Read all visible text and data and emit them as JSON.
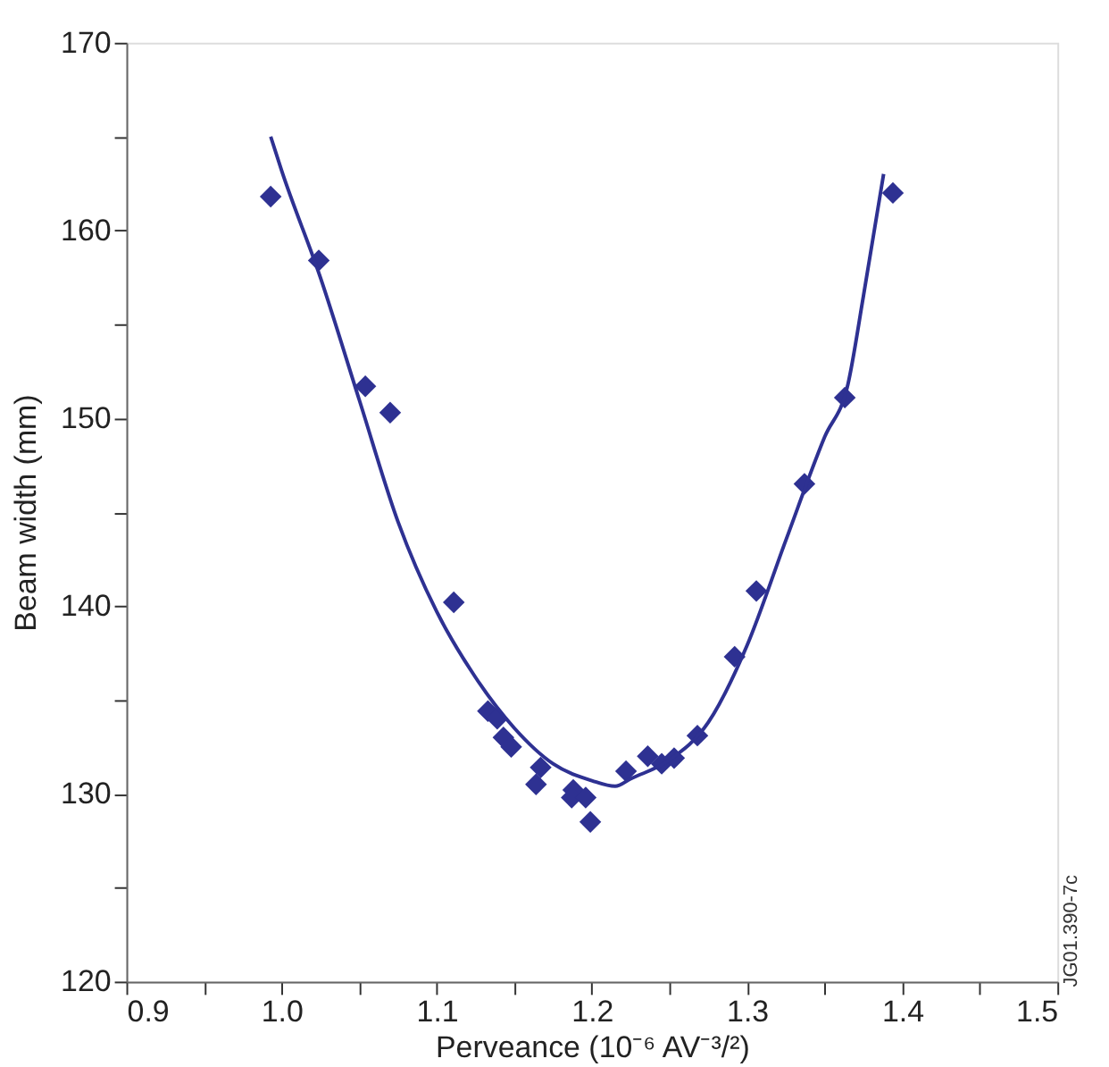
{
  "chart_data": {
    "type": "scatter",
    "xlabel": "Perveance (10⁻⁶ AV⁻³/²)",
    "ylabel": "Beam width (mm)",
    "xlim": [
      0.9,
      1.5
    ],
    "ylim": [
      120,
      170
    ],
    "xticks": [
      0.9,
      {
        "value": 0.95,
        "label": null
      },
      {
        "value": 1,
        "label": "1.0"
      },
      {
        "value": 1.05,
        "label": null
      },
      1.1,
      {
        "value": 1.15,
        "label": null
      },
      1.2,
      {
        "value": 1.25,
        "label": null
      },
      1.3,
      {
        "value": 1.35,
        "label": null
      },
      1.4,
      {
        "value": 1.45,
        "label": null
      },
      1.5
    ],
    "yticks": [
      120,
      {
        "value": 125,
        "label": null
      },
      130,
      {
        "value": 135,
        "label": null
      },
      140,
      {
        "value": 145,
        "label": null
      },
      150,
      {
        "value": 155,
        "label": null
      },
      160,
      {
        "value": 165,
        "label": null
      },
      170
    ],
    "grid": false,
    "marker": "diamond",
    "annotations": [
      "JG01.390-7c"
    ],
    "series": [
      {
        "color": "#2e3192",
        "x": [
          0.993,
          1.024,
          1.054,
          1.07,
          1.111,
          1.133,
          1.139,
          1.143,
          1.148,
          1.167,
          1.164,
          1.188,
          1.187,
          1.196,
          1.199,
          1.222,
          1.236,
          1.245,
          1.253,
          1.268,
          1.292,
          1.306,
          1.337,
          1.363,
          1.394
        ],
        "values": [
          161.8,
          158.4,
          151.7,
          150.3,
          140.2,
          134.4,
          134.0,
          133.0,
          132.5,
          131.4,
          130.5,
          130.2,
          129.8,
          129.8,
          128.5,
          131.2,
          132.0,
          131.6,
          131.9,
          133.1,
          137.3,
          140.8,
          146.5,
          151.1,
          162.0
        ]
      },
      {
        "type": "line",
        "color": "#2e3192",
        "marker": "none",
        "line_style": "solid",
        "x": [
          0.993,
          1.0,
          1.025,
          1.05,
          1.075,
          1.1,
          1.125,
          1.15,
          1.175,
          1.2,
          1.215,
          1.225,
          1.25,
          1.275,
          1.3,
          1.325,
          1.35,
          1.365,
          1.375,
          1.388
        ],
        "values": [
          165,
          163.2,
          157.5,
          151,
          144.5,
          139.7,
          136.2,
          133.5,
          131.6,
          130.7,
          130.4,
          130.8,
          131.8,
          133.8,
          137.9,
          143.5,
          149,
          151.8,
          156.5,
          163
        ]
      }
    ]
  }
}
